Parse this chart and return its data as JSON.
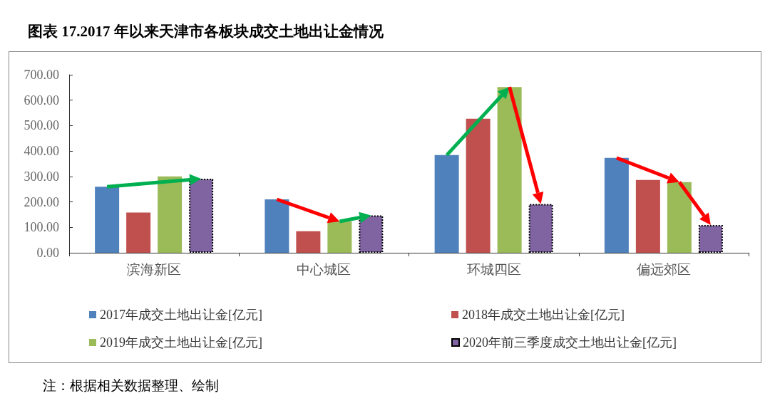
{
  "chart_data": {
    "type": "bar",
    "title": "图表 17.2017 年以来天津市各板块成交土地出让金情况",
    "categories": [
      "滨海新区",
      "中心城区",
      "环城四区",
      "偏远郊区"
    ],
    "series": [
      {
        "name": "2017年成交土地出让金[亿元]",
        "color": "#4f81bd",
        "values": [
          260,
          210,
          384,
          373
        ]
      },
      {
        "name": "2018年成交土地出让金[亿元]",
        "color": "#c0504d",
        "values": [
          158,
          85,
          527,
          286
        ]
      },
      {
        "name": "2019年成交土地出让金[亿元]",
        "color": "#9bbb59",
        "values": [
          300,
          123,
          652,
          278
        ]
      },
      {
        "name": "2020年前三季度成交土地出让金[亿元]",
        "color": "#8064a2",
        "values": [
          291,
          147,
          192,
          109
        ]
      }
    ],
    "ylim": [
      0,
      700
    ],
    "yticks": [
      {
        "value": 0,
        "label": "0.00"
      },
      {
        "value": 100,
        "label": "100.00"
      },
      {
        "value": 200,
        "label": "200.00"
      },
      {
        "value": 300,
        "label": "300.00"
      },
      {
        "value": 400,
        "label": "400.00"
      },
      {
        "value": 500,
        "label": "500.00"
      },
      {
        "value": 600,
        "label": "600.00"
      },
      {
        "value": 700,
        "label": "700.00"
      }
    ],
    "grid": false,
    "legend": "bottom",
    "annotations": [
      "注：根据相关数据整理、绘制"
    ]
  }
}
